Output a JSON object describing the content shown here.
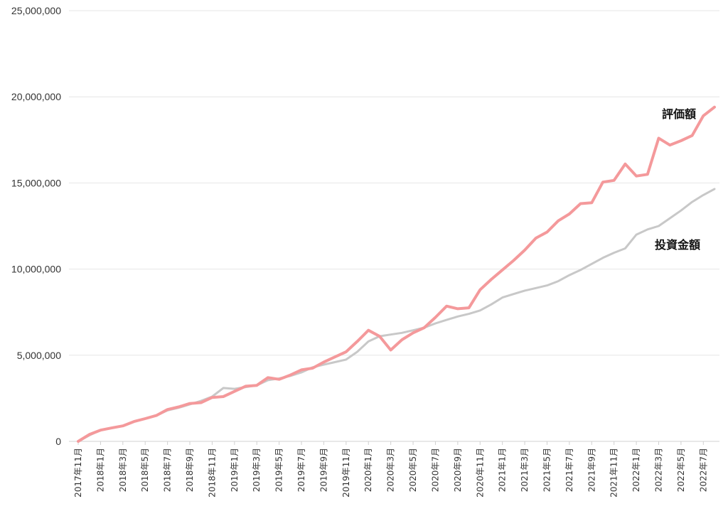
{
  "chart_data": {
    "type": "line",
    "title": "",
    "xlabel": "",
    "ylabel": "",
    "ylim": [
      0,
      25000000
    ],
    "grid": true,
    "yticks": [
      "0",
      "5,000,000",
      "10,000,000",
      "15,000,000",
      "20,000,000",
      "25,000,000"
    ],
    "categories": [
      "2017年11月",
      "2017年12月",
      "2018年1月",
      "2018年2月",
      "2018年3月",
      "2018年4月",
      "2018年5月",
      "2018年6月",
      "2018年7月",
      "2018年8月",
      "2018年9月",
      "2018年10月",
      "2018年11月",
      "2018年12月",
      "2019年1月",
      "2019年2月",
      "2019年3月",
      "2019年4月",
      "2019年5月",
      "2019年6月",
      "2019年7月",
      "2019年8月",
      "2019年9月",
      "2019年10月",
      "2019年11月",
      "2019年12月",
      "2020年1月",
      "2020年2月",
      "2020年3月",
      "2020年4月",
      "2020年5月",
      "2020年6月",
      "2020年7月",
      "2020年8月",
      "2020年9月",
      "2020年10月",
      "2020年11月",
      "2020年12月",
      "2021年1月",
      "2021年2月",
      "2021年3月",
      "2021年4月",
      "2021年5月",
      "2021年6月",
      "2021年7月",
      "2021年8月",
      "2021年9月",
      "2021年10月",
      "2021年11月",
      "2021年12月",
      "2022年1月",
      "2022年2月",
      "2022年3月",
      "2022年4月",
      "2022年5月",
      "2022年6月",
      "2022年7月",
      "2022年8月"
    ],
    "tick_labels": [
      "2017年11月",
      "2018年1月",
      "2018年3月",
      "2018年5月",
      "2018年7月",
      "2018年9月",
      "2018年11月",
      "2019年1月",
      "2019年3月",
      "2019年5月",
      "2019年7月",
      "2019年9月",
      "2019年11月",
      "2020年1月",
      "2020年3月",
      "2020年5月",
      "2020年7月",
      "2020年9月",
      "2020年11月",
      "2021年1月",
      "2021年3月",
      "2021年5月",
      "2021年7月",
      "2021年9月",
      "2021年11月",
      "2022年1月",
      "2022年3月",
      "2022年5月",
      "2022年7月"
    ],
    "series": [
      {
        "name": "評価額",
        "color": "#f4999b",
        "values": [
          0,
          400000,
          650000,
          780000,
          900000,
          1150000,
          1320000,
          1500000,
          1850000,
          2000000,
          2200000,
          2250000,
          2550000,
          2600000,
          2900000,
          3200000,
          3250000,
          3700000,
          3600000,
          3850000,
          4150000,
          4250000,
          4600000,
          4900000,
          5200000,
          5800000,
          6450000,
          6100000,
          5300000,
          5900000,
          6300000,
          6600000,
          7200000,
          7850000,
          7700000,
          7750000,
          8800000,
          9400000,
          9950000,
          10500000,
          11100000,
          11800000,
          12150000,
          12800000,
          13200000,
          13800000,
          13850000,
          15050000,
          15150000,
          16100000,
          15400000,
          15500000,
          17600000,
          17200000,
          17450000,
          17750000,
          18900000,
          19400000
        ]
      },
      {
        "name": "投資金額",
        "color": "#c8c8c8",
        "values": [
          0,
          350000,
          650000,
          780000,
          900000,
          1150000,
          1320000,
          1500000,
          1800000,
          1950000,
          2150000,
          2350000,
          2600000,
          3100000,
          3050000,
          3150000,
          3250000,
          3550000,
          3650000,
          3800000,
          4000000,
          4300000,
          4450000,
          4600000,
          4750000,
          5200000,
          5800000,
          6100000,
          6200000,
          6300000,
          6450000,
          6600000,
          6850000,
          7050000,
          7250000,
          7400000,
          7600000,
          7950000,
          8350000,
          8550000,
          8750000,
          8900000,
          9050000,
          9300000,
          9650000,
          9950000,
          10300000,
          10650000,
          10950000,
          11200000,
          12000000,
          12300000,
          12500000,
          12950000,
          13400000,
          13900000,
          14300000,
          14650000
        ]
      }
    ],
    "annotations": [
      "評価額",
      "投資金額"
    ]
  }
}
